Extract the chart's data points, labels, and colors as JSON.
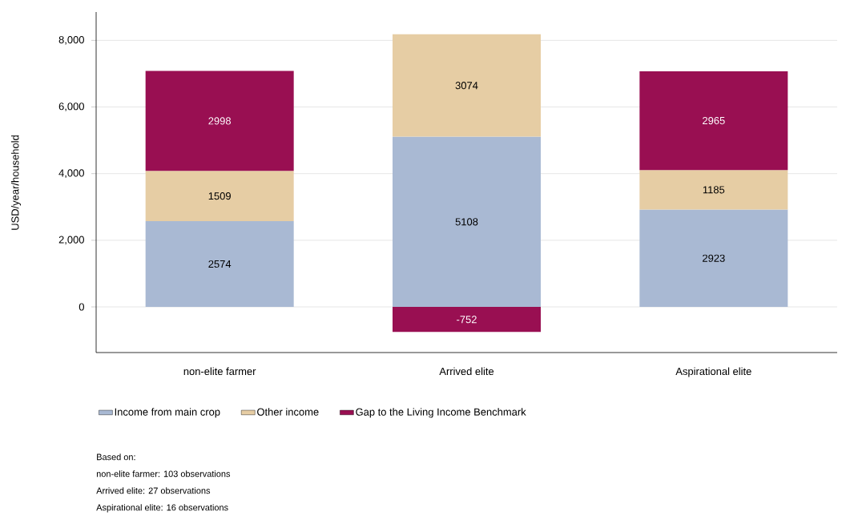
{
  "chart_data": {
    "type": "bar",
    "stacked": true,
    "ylabel": "USD/year/household",
    "categories": [
      "non-elite farmer",
      "Arrived elite",
      "Aspirational elite"
    ],
    "series": [
      {
        "name": "Income from main crop",
        "color": "#a9b9d3",
        "values": [
          2574,
          5108,
          2923
        ]
      },
      {
        "name": "Other income",
        "color": "#e6cda4",
        "values": [
          1509,
          3074,
          1185
        ]
      },
      {
        "name": "Gap to the Living Income Benchmark",
        "color": "#990f52",
        "values": [
          2998,
          -752,
          2965
        ]
      }
    ],
    "ylim": [
      -1370,
      8850
    ],
    "yticks": [
      0,
      {
        "value": 2000,
        "label": "2,000"
      },
      {
        "value": 4000,
        "label": "4,000"
      },
      {
        "value": 6000,
        "label": "6,000"
      },
      {
        "value": 8000,
        "label": "8,000"
      }
    ],
    "grid": "y",
    "legend": "bottom",
    "data_labels": true,
    "annotations": [
      "Based on:",
      "non-elite farmer: 103 observations",
      "Arrived elite: 27 observations",
      "Aspirational elite: 16 observations"
    ]
  }
}
